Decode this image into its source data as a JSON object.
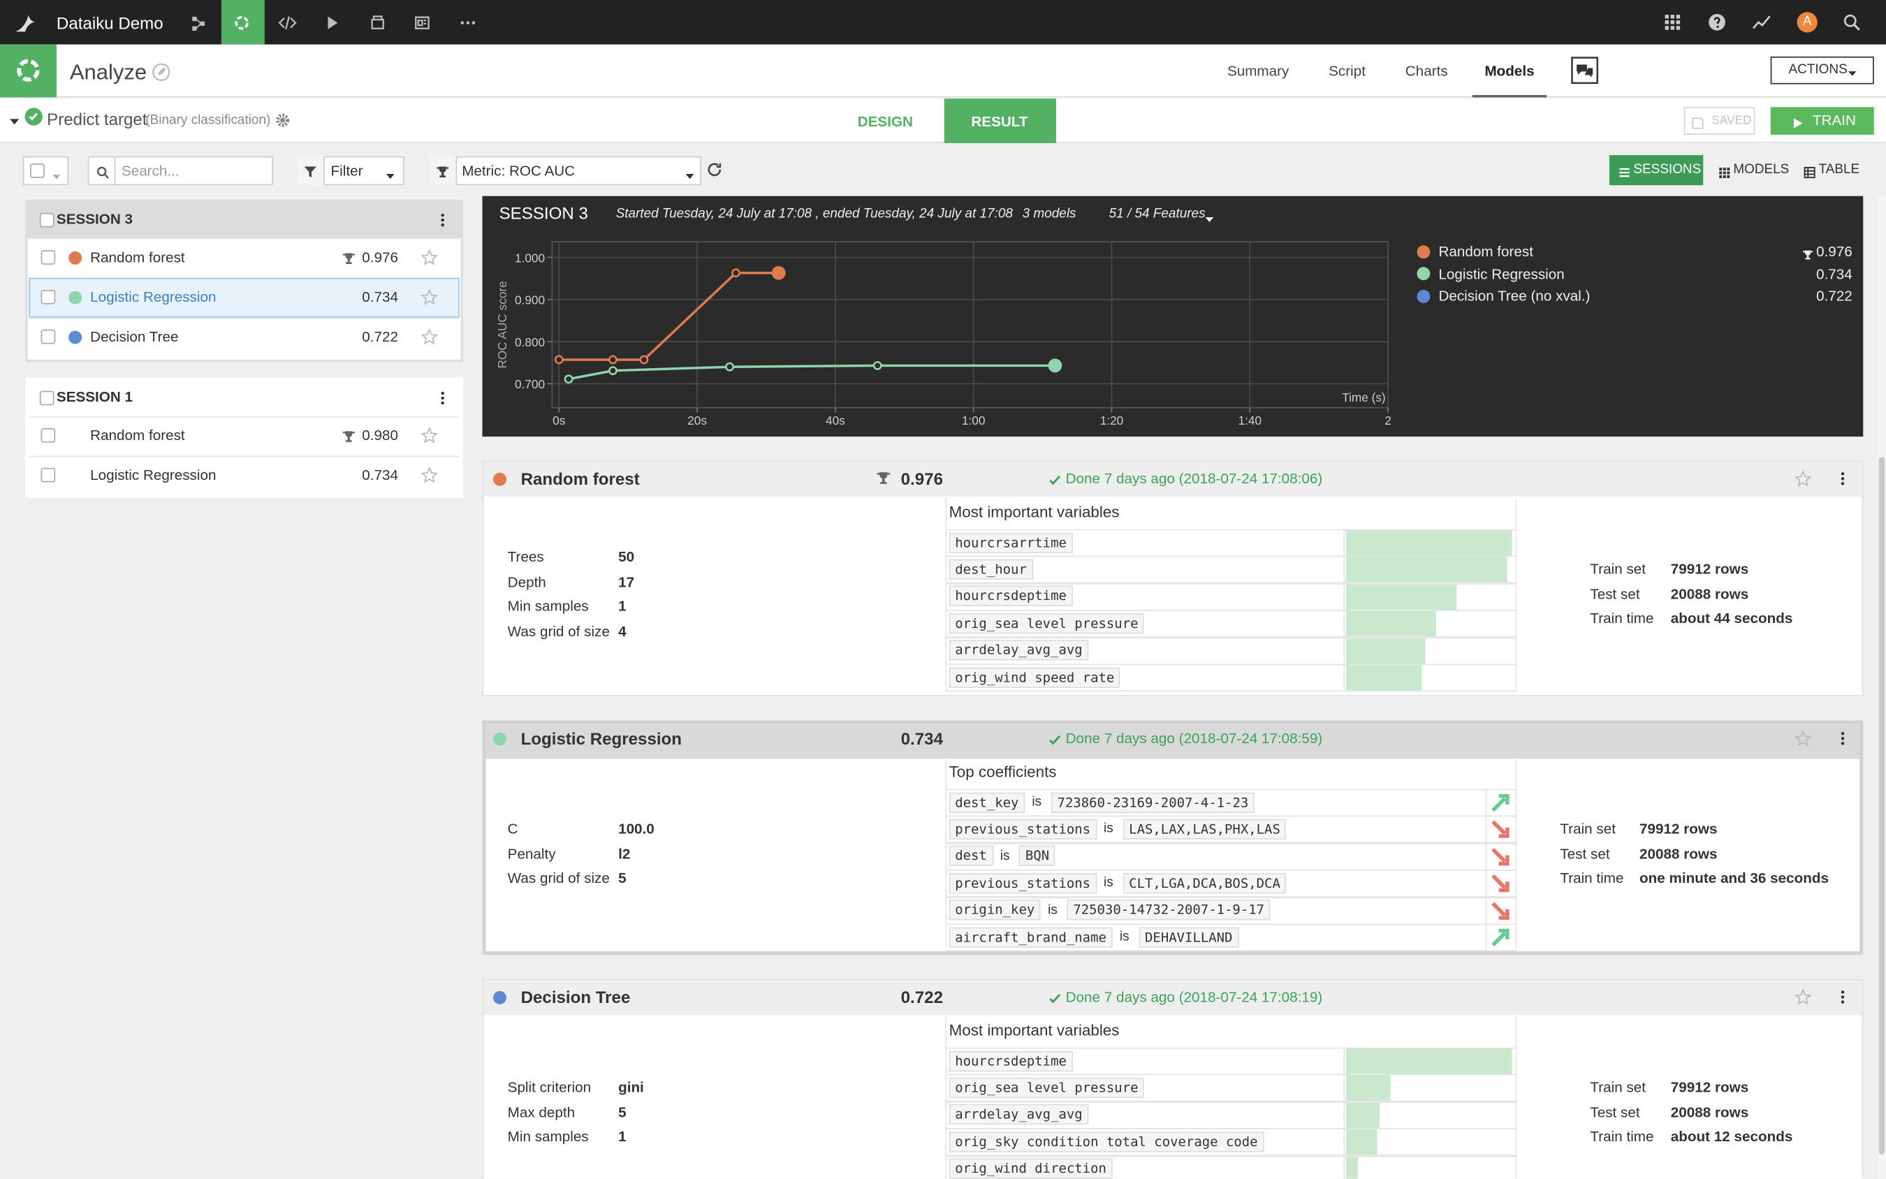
{
  "topbar": {
    "project": "Dataiku Demo",
    "avatar": "A"
  },
  "header": {
    "title": "Analyze",
    "tabs": [
      "Summary",
      "Script",
      "Charts",
      "Models"
    ],
    "active_tab": 3,
    "actions": "ACTIONS"
  },
  "task": {
    "name": "Predict target",
    "kind": "(Binary classification)",
    "tabs": [
      "DESIGN",
      "RESULT"
    ],
    "active_tab": 1,
    "saved": "SAVED",
    "train": "TRAIN"
  },
  "toolbar": {
    "search_placeholder": "Search...",
    "filter": "Filter",
    "metric": "Metric: ROC AUC",
    "views": [
      "SESSIONS",
      "MODELS",
      "TABLE"
    ],
    "active_view": 0
  },
  "sessions": [
    {
      "name": "SESSION 3",
      "models": [
        {
          "name": "Random forest",
          "color": "#e07b4f",
          "score": "0.976",
          "best": true
        },
        {
          "name": "Logistic Regression",
          "color": "#8fd6ae",
          "score": "0.734",
          "selected": true
        },
        {
          "name": "Decision Tree",
          "color": "#5b8bd0",
          "score": "0.722"
        }
      ]
    },
    {
      "name": "SESSION 1",
      "models": [
        {
          "name": "Random forest",
          "score": "0.980",
          "best": true
        },
        {
          "name": "Logistic Regression",
          "score": "0.734"
        }
      ]
    }
  ],
  "session_summary": {
    "name": "SESSION 3",
    "time": "Started Tuesday, 24 July at 17:08 , ended Tuesday, 24 July at 17:08",
    "models": "3 models",
    "features": "51 / 54 Features"
  },
  "chart_data": {
    "type": "line",
    "y_label": "ROC AUC score",
    "x_label": "Time (s)",
    "grid": true,
    "xlim": [
      -1,
      120
    ],
    "xticks": [
      {
        "value": 0,
        "label": "0s"
      },
      {
        "value": 20,
        "label": "20s"
      },
      {
        "value": 40,
        "label": "40s"
      },
      {
        "value": 60,
        "label": "1:00"
      },
      {
        "value": 80,
        "label": "1:20"
      },
      {
        "value": 100,
        "label": "1:40"
      },
      {
        "value": 120,
        "label": "2"
      }
    ],
    "ylim": [
      0.643,
      1.037
    ],
    "yticks": [
      {
        "value": 0.7,
        "label": "0.700"
      },
      {
        "value": 0.8,
        "label": "0.800"
      },
      {
        "value": 0.9,
        "label": "0.900"
      },
      {
        "value": 1.0,
        "label": "1.000"
      }
    ],
    "series": [
      {
        "name": "Random forest",
        "color": "#e07b4f",
        "score": "0.976",
        "best": true,
        "x": [
          0,
          7.8,
          12.3,
          25.6,
          31.8
        ],
        "values": [
          0.757,
          0.757,
          0.757,
          0.963,
          0.963
        ]
      },
      {
        "name": "Logistic Regression",
        "color": "#8fd6ae",
        "score": "0.734",
        "x": [
          1.4,
          7.8,
          24.7,
          46.1,
          71.8
        ],
        "values": [
          0.711,
          0.731,
          0.74,
          0.743,
          0.743
        ]
      },
      {
        "name": "Decision Tree (no xval.)",
        "color": "#5b8bd0",
        "score": "0.722",
        "x": [],
        "values": []
      }
    ]
  },
  "models": [
    {
      "name": "Random forest",
      "color": "#e07b4f",
      "score": "0.976",
      "best": true,
      "status": "Done 7 days ago (2018-07-24 17:08:06)",
      "params": [
        [
          "Trees",
          "50"
        ],
        [
          "Depth",
          "17"
        ],
        [
          "Min samples",
          "1"
        ],
        [
          "Was grid of size",
          "4"
        ]
      ],
      "section": "Most important variables",
      "variables": [
        {
          "name": "hourcrsarrtime",
          "importance": 1.0
        },
        {
          "name": "dest_hour",
          "importance": 0.97
        },
        {
          "name": "hourcrsdeptime",
          "importance": 0.67
        },
        {
          "name": "orig_sea level pressure",
          "importance": 0.54
        },
        {
          "name": "arrdelay_avg_avg",
          "importance": 0.48
        },
        {
          "name": "orig_wind speed rate",
          "importance": 0.46
        }
      ],
      "stats": [
        [
          "Train set",
          "79912 rows"
        ],
        [
          "Test set",
          "20088 rows"
        ],
        [
          "Train time",
          "about 44 seconds"
        ]
      ]
    },
    {
      "name": "Logistic Regression",
      "color": "#8fd6ae",
      "score": "0.734",
      "selected": true,
      "status": "Done 7 days ago (2018-07-24 17:08:59)",
      "params": [
        [
          "C",
          "100.0"
        ],
        [
          "Penalty",
          "l2"
        ],
        [
          "Was grid of size",
          "5"
        ]
      ],
      "section": "Top coefficients",
      "coefficients": [
        {
          "feature": "dest_key",
          "op": "is",
          "value": "723860-23169-2007-4-1-23",
          "direction": "up"
        },
        {
          "feature": "previous_stations",
          "op": "is",
          "value": "LAS,LAX,LAS,PHX,LAS",
          "direction": "down"
        },
        {
          "feature": "dest",
          "op": "is",
          "value": "BQN",
          "direction": "down"
        },
        {
          "feature": "previous_stations",
          "op": "is",
          "value": "CLT,LGA,DCA,BOS,DCA",
          "direction": "down"
        },
        {
          "feature": "origin_key",
          "op": "is",
          "value": "725030-14732-2007-1-9-17",
          "direction": "down"
        },
        {
          "feature": "aircraft_brand_name",
          "op": "is",
          "value": "DEHAVILLAND",
          "direction": "up"
        }
      ],
      "stats": [
        [
          "Train set",
          "79912 rows"
        ],
        [
          "Test set",
          "20088 rows"
        ],
        [
          "Train time",
          "one minute and 36 seconds"
        ]
      ]
    },
    {
      "name": "Decision Tree",
      "color": "#5b8bd0",
      "score": "0.722",
      "status": "Done 7 days ago (2018-07-24 17:08:19)",
      "params": [
        [
          "Split criterion",
          "gini"
        ],
        [
          "Max depth",
          "5"
        ],
        [
          "Min samples",
          "1"
        ]
      ],
      "section": "Most important variables",
      "variables": [
        {
          "name": "hourcrsdeptime",
          "importance": 1.0
        },
        {
          "name": "orig_sea level pressure",
          "importance": 0.27
        },
        {
          "name": "arrdelay_avg_avg",
          "importance": 0.2
        },
        {
          "name": "orig_sky condition total coverage code",
          "importance": 0.19
        },
        {
          "name": "orig_wind direction",
          "importance": 0.07
        }
      ],
      "stats": [
        [
          "Train set",
          "79912 rows"
        ],
        [
          "Test set",
          "20088 rows"
        ],
        [
          "Train time",
          "about 12 seconds"
        ]
      ]
    }
  ]
}
